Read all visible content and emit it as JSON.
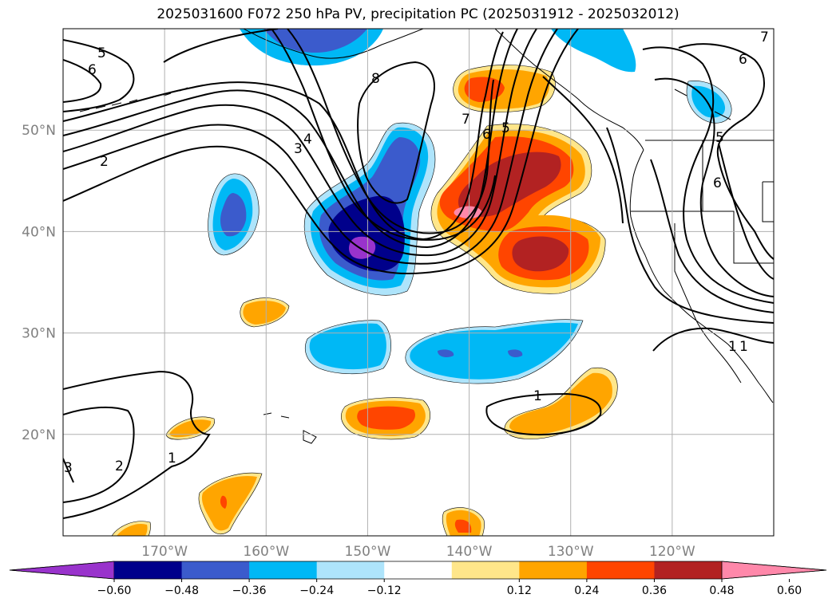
{
  "title": "2025031600 F072 250 hPa PV, precipitation PC (2025031912 - 2025032012)",
  "map": {
    "lon_range": [
      -180,
      -110
    ],
    "lat_range": [
      10,
      60
    ],
    "lon_ticks": [
      {
        "value": -170,
        "label": "170°W"
      },
      {
        "value": -160,
        "label": "160°W"
      },
      {
        "value": -150,
        "label": "150°W"
      },
      {
        "value": -140,
        "label": "140°W"
      },
      {
        "value": -130,
        "label": "130°W"
      },
      {
        "value": -120,
        "label": "120°W"
      }
    ],
    "lat_ticks": [
      {
        "value": 20,
        "label": "20°N"
      },
      {
        "value": 30,
        "label": "30°N"
      },
      {
        "value": 40,
        "label": "40°N"
      },
      {
        "value": 50,
        "label": "50°N"
      }
    ],
    "grid": true,
    "gridline_color": "#b0b0b0"
  },
  "colorbar": {
    "levels": [
      "−0.60",
      "−0.48",
      "−0.36",
      "−0.24",
      "−0.12",
      "0.12",
      "0.24",
      "0.36",
      "0.48",
      "0.60"
    ],
    "colors": [
      "#9933cc",
      "#00008b",
      "#3b5bcc",
      "#00b8f5",
      "#aee4fb",
      "#ffffff",
      "#ffe68a",
      "#ffa500",
      "#ff4500",
      "#b22222",
      "#ff88aa"
    ],
    "extend": "both"
  },
  "fill_colors": {
    "neg_light": "#aee4fb",
    "neg_1": "#00b8f5",
    "neg_2": "#3b5bcc",
    "neg_3": "#00008b",
    "neg_4": "#9933cc",
    "pos_light": "#ffe68a",
    "pos_1": "#ffa500",
    "pos_2": "#ff4500",
    "pos_3": "#b22222",
    "pos_4": "#ff88aa"
  },
  "contour_labels": [
    "5",
    "6",
    "8",
    "3",
    "4",
    "2",
    "7",
    "6",
    "5",
    "7",
    "6",
    "5",
    "6",
    "1",
    "1",
    "1",
    "2",
    "3",
    "1"
  ]
}
